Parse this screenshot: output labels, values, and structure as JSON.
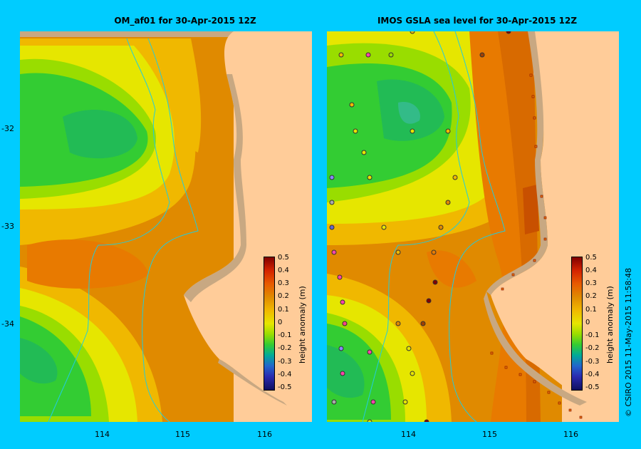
{
  "left_panel": {
    "title": "OM_af01  for 30-Apr-2015 12Z"
  },
  "right_panel": {
    "title": "IMOS GSLA sea level  for 30-Apr-2015 12Z"
  },
  "axes": {
    "y_labels": [
      "-32",
      "-33",
      "-34"
    ],
    "x_labels": [
      "114",
      "115",
      "116"
    ]
  },
  "colorbar": {
    "title": "height anomaly (m)",
    "labels": [
      "0.5",
      "0.4",
      "0.3",
      "0.2",
      "0.1",
      "0",
      "-0.1",
      "-0.2",
      "-0.3",
      "-0.4",
      "-0.5"
    ],
    "colors": [
      "#800000",
      "#d42400",
      "#e85a00",
      "#e08a00",
      "#f0b800",
      "#e6e600",
      "#99dd00",
      "#33cc33",
      "#00aa99",
      "#2266cc",
      "#101060"
    ]
  },
  "credit": "© CSIRO 2015   11-May-2015 11:58:48",
  "colors": {
    "background": "#00ccff",
    "land": "#ffcc99",
    "shelf": "#c8a882",
    "contour": "#22ccdd"
  }
}
